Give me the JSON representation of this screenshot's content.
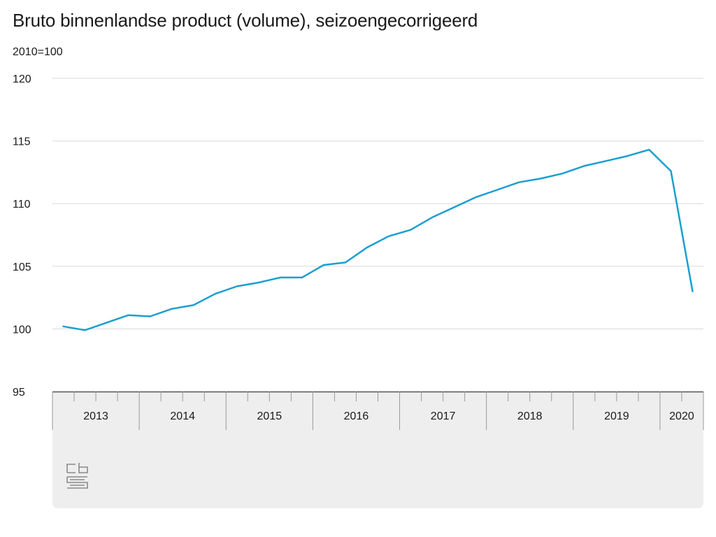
{
  "title": "Bruto binnenlandse product (volume), seizoengecorrigeerd",
  "unit_label": "2010=100",
  "logo": {
    "icon": "cbs-logo-icon"
  },
  "colors": {
    "line": "#1a9fd0",
    "grid": "#d9d9d9",
    "axis": "#4d4d4d",
    "band": "#eeeeee",
    "logo": "#8a8a8a"
  },
  "chart_data": {
    "type": "line",
    "title": "Bruto binnenlandse product (volume), seizoengecorrigeerd",
    "ylabel": "2010=100",
    "ylim": [
      95,
      120
    ],
    "yticks": [
      95,
      100,
      105,
      110,
      115,
      120
    ],
    "grid": true,
    "legend": "none",
    "x_groups": [
      {
        "label": "2013",
        "quarters": 4
      },
      {
        "label": "2014",
        "quarters": 4
      },
      {
        "label": "2015",
        "quarters": 4
      },
      {
        "label": "2016",
        "quarters": 4
      },
      {
        "label": "2017",
        "quarters": 4
      },
      {
        "label": "2018",
        "quarters": 4
      },
      {
        "label": "2019",
        "quarters": 4
      },
      {
        "label": "2020",
        "quarters": 2
      }
    ],
    "x": [
      "2013 Q1",
      "2013 Q2",
      "2013 Q3",
      "2013 Q4",
      "2014 Q1",
      "2014 Q2",
      "2014 Q3",
      "2014 Q4",
      "2015 Q1",
      "2015 Q2",
      "2015 Q3",
      "2015 Q4",
      "2016 Q1",
      "2016 Q2",
      "2016 Q3",
      "2016 Q4",
      "2017 Q1",
      "2017 Q2",
      "2017 Q3",
      "2017 Q4",
      "2018 Q1",
      "2018 Q2",
      "2018 Q3",
      "2018 Q4",
      "2019 Q1",
      "2019 Q2",
      "2019 Q3",
      "2019 Q4",
      "2020 Q1",
      "2020 Q2"
    ],
    "series": [
      {
        "values": [
          100.2,
          99.9,
          100.5,
          101.1,
          101.0,
          101.6,
          101.9,
          102.8,
          103.4,
          103.7,
          104.1,
          104.1,
          105.1,
          105.3,
          106.5,
          107.4,
          107.9,
          108.9,
          109.7,
          110.5,
          111.1,
          111.7,
          112.0,
          112.4,
          113.0,
          113.4,
          113.8,
          114.3,
          112.6,
          103.0
        ]
      }
    ]
  }
}
